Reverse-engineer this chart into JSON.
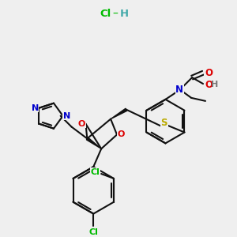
{
  "bg_color": "#efefef",
  "atom_colors": {
    "O": "#dd0000",
    "N": "#0000cc",
    "S": "#bbaa00",
    "Cl": "#00bb00",
    "H": "#777777",
    "C": "#111111"
  },
  "bond_color": "#111111",
  "hcl_cl_color": "#00bb00",
  "hcl_h_color": "#44aaaa"
}
